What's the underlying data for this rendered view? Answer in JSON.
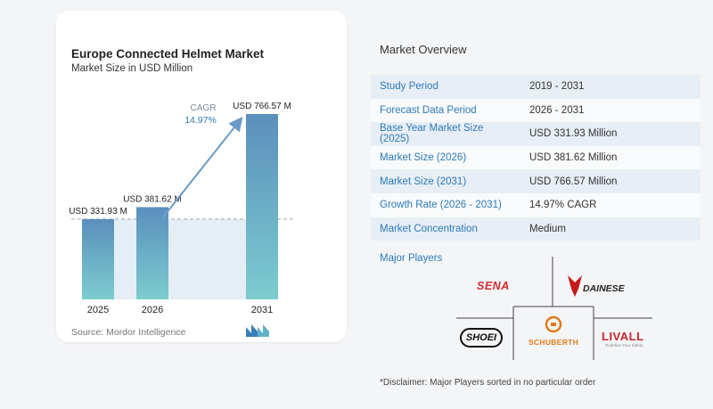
{
  "chart": {
    "title": "Europe Connected Helmet Market",
    "subtitle": "Market Size in USD Million",
    "source": "Source: Mordor Intelligence",
    "cagr_label": "CAGR",
    "cagr_value": "14.97%"
  },
  "chart_data": {
    "type": "bar",
    "categories": [
      "2025",
      "2026",
      "2031"
    ],
    "values": [
      331.93,
      381.62,
      766.57
    ],
    "data_labels": [
      "USD 331.93 M",
      "USD 381.62 M",
      "USD 766.57 M"
    ],
    "title": "Europe Connected Helmet Market",
    "subtitle": "Market Size in USD Million",
    "xlabel": "",
    "ylabel": "",
    "ylim": [
      0,
      800
    ],
    "grid": false,
    "colors": {
      "bar_top": "#5b8fbd",
      "bar_bottom": "#7ccccf",
      "arrow": "#6a9cc8",
      "band": "#e5edf5",
      "dashed": "#9aa6b2"
    }
  },
  "overview": {
    "title": "Market Overview",
    "rows": [
      {
        "key": "Study Period",
        "value": "2019 - 2031"
      },
      {
        "key": "Forecast Data Period",
        "value": "2026 - 2031"
      },
      {
        "key": "Base Year Market Size (2025)",
        "value": "USD 331.93 Million"
      },
      {
        "key": "Market Size (2026)",
        "value": "USD 381.62 Million"
      },
      {
        "key": "Market Size (2031)",
        "value": "USD 766.57 Million"
      },
      {
        "key": "Growth Rate (2026 - 2031)",
        "value": "14.97% CAGR"
      },
      {
        "key": "Market Concentration",
        "value": "Medium"
      }
    ]
  },
  "players": {
    "title": "Major Players",
    "logos": [
      "SENA",
      "DAINESE",
      "SHOEI",
      "SCHUBERTH",
      "LIVALL"
    ],
    "livall_tagline": "Redefine Your Safety"
  },
  "disclaimer": "*Disclaimer: Major Players sorted in no particular order"
}
